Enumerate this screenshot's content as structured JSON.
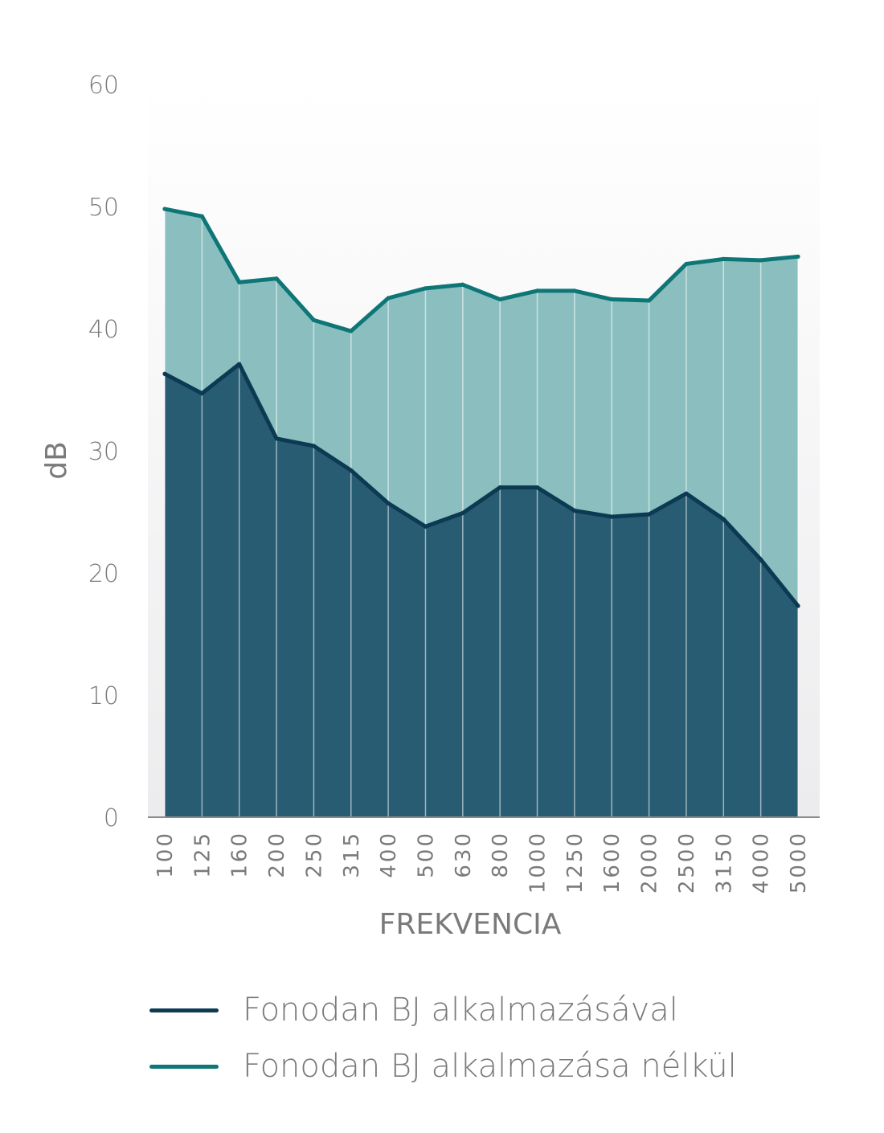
{
  "chart_data": {
    "type": "area",
    "title": "",
    "xlabel": "FREKVENCIA",
    "ylabel": "dB",
    "ylim": [
      0,
      60
    ],
    "yticks": [
      "0",
      "10",
      "20",
      "30",
      "40",
      "50",
      "60"
    ],
    "categories": [
      "100",
      "125",
      "160",
      "200",
      "250",
      "315",
      "400",
      "500",
      "630",
      "800",
      "1000",
      "1250",
      "1600",
      "2000",
      "2500",
      "3150",
      "4000",
      "5000"
    ],
    "series": [
      {
        "name": "Fonodan BJ alkalmazásával",
        "color": "#0b3a52",
        "fill": "#275c72",
        "values": [
          36.3,
          34.7,
          37.1,
          31.0,
          30.4,
          28.4,
          25.7,
          23.8,
          24.9,
          27.0,
          27.0,
          25.1,
          24.6,
          24.8,
          26.5,
          24.4,
          21.1,
          17.3
        ]
      },
      {
        "name": "Fonodan BJ alkalmazása nélkül",
        "color": "#0e7676",
        "fill": "#8bbfbf",
        "values": [
          49.8,
          49.2,
          43.8,
          44.1,
          40.7,
          39.8,
          42.5,
          43.3,
          43.6,
          42.4,
          43.1,
          43.1,
          42.4,
          42.3,
          45.3,
          45.7,
          45.6,
          45.9
        ]
      }
    ],
    "grid": false,
    "legend_position": "bottom"
  }
}
